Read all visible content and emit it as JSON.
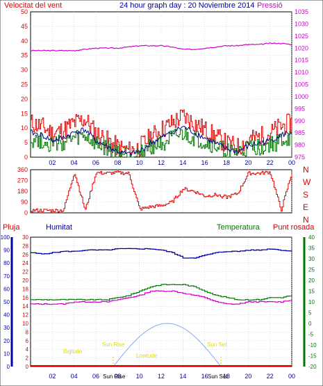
{
  "header": {
    "left_title": "Velocitat del vent",
    "center_title": "24 hour graph day : 20 Noviembre 2014",
    "right_title": "Pressió"
  },
  "x_ticks": [
    "02",
    "04",
    "06",
    "08",
    "10",
    "12",
    "14",
    "16",
    "18",
    "20",
    "22",
    "00"
  ],
  "colors": {
    "red": "#e00000",
    "blue": "#000099",
    "green": "#007700",
    "magenta": "#cc00cc",
    "dark_blue": "#0000aa",
    "light_blue": "#88aaee",
    "yellow_text": "#dddd00"
  },
  "panel_wind": {
    "left_ticks": [
      "0",
      "5",
      "10",
      "15",
      "20",
      "25",
      "30",
      "35",
      "40",
      "45",
      "50"
    ],
    "right_ticks": [
      "975",
      "980",
      "985",
      "990",
      "995",
      "1000",
      "1005",
      "1010",
      "1015",
      "1020",
      "1025",
      "1030",
      "1035"
    ]
  },
  "panel_dir": {
    "left_ticks": [
      "0",
      "90",
      "180",
      "270",
      "360"
    ],
    "right_labels": [
      "N",
      "W",
      "S",
      "E",
      "N"
    ]
  },
  "panel_bottom": {
    "labels": {
      "pluja": "Pluja",
      "humitat": "Humitat",
      "temperatura": "Temperatura",
      "punt_rosada": "Punt rosada"
    },
    "axis_hum": [
      "0",
      "10",
      "20",
      "30",
      "40",
      "50",
      "60",
      "70",
      "80",
      "90",
      "100"
    ],
    "axis_rain": [
      "0",
      "2",
      "4",
      "6",
      "8",
      "10",
      "12",
      "14",
      "16",
      "18",
      "20",
      "22",
      "24",
      "26",
      "28",
      "30"
    ],
    "axis_temp": [
      "-20",
      "-15",
      "-10",
      "-5",
      "0",
      "5",
      "10",
      "15",
      "20",
      "25",
      "30",
      "35",
      "40"
    ],
    "annotations": {
      "sun_rise_1": "Sun Rise",
      "sun_rise_2": "Sun Rise",
      "sun_set_1": "Sun Set",
      "sun_set_2": "Sun Set",
      "bigtude": "Bigtude",
      "lowtude": "Lowtude"
    }
  },
  "chart_data": [
    {
      "type": "line",
      "title": "24 hour graph day : 20 Noviembre 2014",
      "x_hours": [
        0,
        1,
        2,
        3,
        4,
        5,
        6,
        7,
        8,
        9,
        10,
        11,
        12,
        13,
        14,
        15,
        16,
        17,
        18,
        19,
        20,
        21,
        22,
        23,
        24
      ],
      "series": [
        {
          "name": "Velocitat del vent",
          "axis": "left",
          "values": [
            9,
            8,
            6,
            7,
            9,
            10,
            6,
            4,
            2,
            1,
            2,
            5,
            7,
            9,
            11,
            9,
            7,
            5,
            3,
            2,
            4,
            5,
            6,
            8,
            9
          ]
        },
        {
          "name": "Pressió",
          "axis": "right",
          "values": [
            1019,
            1019,
            1019,
            1019,
            1019,
            1019.5,
            1020,
            1020,
            1020,
            1020.5,
            1021,
            1021,
            1021,
            1020.5,
            1019.5,
            1019.5,
            1020,
            1020.5,
            1021,
            1021,
            1021.5,
            1021.5,
            1022,
            1022,
            1021.5
          ]
        }
      ],
      "ylim_left": [
        0,
        50
      ],
      "ylim_right": [
        975,
        1035
      ]
    },
    {
      "type": "line",
      "x_hours": [
        0,
        1,
        2,
        3,
        4,
        5,
        6,
        7,
        8,
        9,
        10,
        11,
        12,
        13,
        14,
        15,
        16,
        17,
        18,
        19,
        20,
        21,
        22,
        23,
        24
      ],
      "series": [
        {
          "axis": "left",
          "values": [
            20,
            20,
            20,
            20,
            340,
            20,
            335,
            330,
            335,
            330,
            30,
            50,
            60,
            90,
            200,
            180,
            140,
            150,
            130,
            160,
            330,
            330,
            340,
            20,
            340
          ]
        }
      ],
      "ylim_left": [
        0,
        360
      ]
    },
    {
      "type": "line",
      "x_hours": [
        0,
        1,
        2,
        3,
        4,
        5,
        6,
        7,
        8,
        9,
        10,
        11,
        12,
        13,
        14,
        15,
        16,
        17,
        18,
        19,
        20,
        21,
        22,
        23,
        24
      ],
      "series": [
        {
          "name": "Humitat",
          "axis": "left",
          "values": [
            88,
            87,
            88,
            89,
            89,
            90,
            90,
            90,
            91,
            91,
            91,
            91,
            90,
            88,
            84,
            84,
            86,
            88,
            89,
            89,
            90,
            90,
            91,
            90,
            89
          ]
        },
        {
          "name": "Temperatura",
          "axis": "right",
          "values": [
            11,
            11,
            11,
            11,
            11,
            11,
            11,
            11,
            12,
            13,
            15,
            17,
            18,
            18,
            18,
            17,
            15,
            13,
            12,
            11,
            11,
            11,
            12,
            12,
            13
          ]
        },
        {
          "name": "Punt rosada",
          "axis": "right",
          "values": [
            9,
            9,
            9,
            9,
            10,
            10,
            10,
            10,
            11,
            12,
            13,
            15,
            15,
            15,
            14,
            13,
            12,
            10,
            9,
            9,
            10,
            10,
            10,
            10,
            11
          ]
        },
        {
          "name": "Pluja",
          "axis": "left_inner",
          "values": [
            0,
            0,
            0,
            0,
            0,
            0,
            0,
            0,
            0,
            0,
            0,
            0,
            0,
            0,
            0,
            0,
            0,
            0,
            0,
            0,
            0,
            0,
            0,
            0,
            0
          ]
        }
      ],
      "ylim_left": [
        0,
        100
      ],
      "ylim_left_inner": [
        0,
        30
      ],
      "ylim_right": [
        -20,
        40
      ]
    }
  ]
}
